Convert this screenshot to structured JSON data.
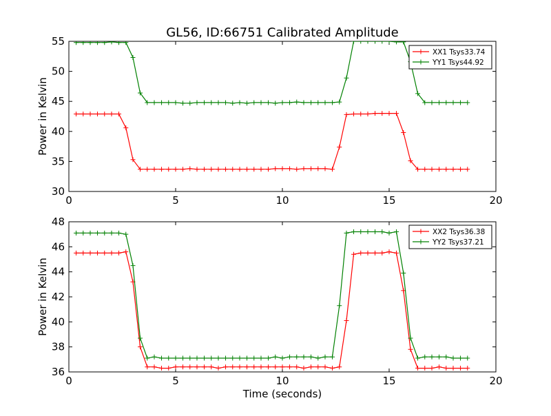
{
  "chart_data": [
    {
      "type": "line",
      "title": "GL56, ID:66751 Calibrated Amplitude",
      "xlabel": "",
      "ylabel": "Power in Kelvin",
      "xlim": [
        0,
        20
      ],
      "ylim": [
        30,
        55
      ],
      "xticks": [
        0,
        5,
        10,
        15,
        20
      ],
      "yticks": [
        30,
        35,
        40,
        45,
        50,
        55
      ],
      "grid": false,
      "legend": "top-right",
      "x": [
        0.34,
        0.67,
        1.0,
        1.34,
        1.67,
        2.0,
        2.34,
        2.67,
        3.0,
        3.34,
        3.67,
        4.0,
        4.34,
        4.67,
        5.0,
        5.34,
        5.67,
        6.0,
        6.34,
        6.67,
        7.0,
        7.34,
        7.67,
        8.0,
        8.34,
        8.67,
        9.0,
        9.34,
        9.67,
        10.0,
        10.34,
        10.67,
        11.0,
        11.34,
        11.67,
        12.0,
        12.34,
        12.67,
        13.0,
        13.34,
        13.67,
        14.0,
        14.34,
        14.67,
        15.0,
        15.34,
        15.67,
        16.0,
        16.34,
        16.67,
        17.0,
        17.34,
        17.67,
        18.0,
        18.34,
        18.67
      ],
      "series": [
        {
          "name": "XX1 Tsys33.74",
          "color": "#ff0000",
          "values": [
            42.9,
            42.9,
            42.9,
            42.9,
            42.9,
            42.9,
            42.9,
            40.6,
            35.3,
            33.7,
            33.7,
            33.7,
            33.7,
            33.7,
            33.7,
            33.7,
            33.8,
            33.7,
            33.7,
            33.7,
            33.7,
            33.7,
            33.7,
            33.7,
            33.7,
            33.7,
            33.7,
            33.7,
            33.8,
            33.8,
            33.8,
            33.7,
            33.8,
            33.8,
            33.8,
            33.8,
            33.7,
            37.4,
            42.8,
            42.9,
            42.9,
            42.9,
            43.0,
            43.0,
            43.0,
            43.0,
            39.8,
            35.1,
            33.7,
            33.7,
            33.7,
            33.7,
            33.7,
            33.7,
            33.7,
            33.7
          ]
        },
        {
          "name": "YY1 Tsys44.92",
          "color": "#008000",
          "values": [
            54.8,
            54.8,
            54.8,
            54.8,
            54.8,
            54.9,
            54.8,
            54.8,
            52.3,
            46.4,
            44.8,
            44.8,
            44.8,
            44.8,
            44.8,
            44.7,
            44.7,
            44.8,
            44.8,
            44.8,
            44.8,
            44.8,
            44.7,
            44.8,
            44.7,
            44.8,
            44.8,
            44.8,
            44.7,
            44.8,
            44.8,
            44.9,
            44.8,
            44.8,
            44.8,
            44.8,
            44.8,
            44.9,
            48.9,
            55.0,
            55.0,
            55.0,
            55.0,
            55.0,
            55.0,
            54.9,
            54.9,
            51.6,
            46.3,
            44.8,
            44.8,
            44.8,
            44.8,
            44.8,
            44.8,
            44.8
          ]
        }
      ]
    },
    {
      "type": "line",
      "title": "",
      "xlabel": "Time (seconds)",
      "ylabel": "Power in Kelvin",
      "xlim": [
        0,
        20
      ],
      "ylim": [
        36,
        48
      ],
      "xticks": [
        0,
        5,
        10,
        15,
        20
      ],
      "yticks": [
        36,
        38,
        40,
        42,
        44,
        46,
        48
      ],
      "grid": false,
      "legend": "top-right",
      "x": [
        0.34,
        0.67,
        1.0,
        1.34,
        1.67,
        2.0,
        2.34,
        2.67,
        3.0,
        3.34,
        3.67,
        4.0,
        4.34,
        4.67,
        5.0,
        5.34,
        5.67,
        6.0,
        6.34,
        6.67,
        7.0,
        7.34,
        7.67,
        8.0,
        8.34,
        8.67,
        9.0,
        9.34,
        9.67,
        10.0,
        10.34,
        10.67,
        11.0,
        11.34,
        11.67,
        12.0,
        12.34,
        12.67,
        13.0,
        13.34,
        13.67,
        14.0,
        14.34,
        14.67,
        15.0,
        15.34,
        15.67,
        16.0,
        16.34,
        16.67,
        17.0,
        17.34,
        17.67,
        18.0,
        18.34,
        18.67
      ],
      "series": [
        {
          "name": "XX2 Tsys36.38",
          "color": "#ff0000",
          "values": [
            45.5,
            45.5,
            45.5,
            45.5,
            45.5,
            45.5,
            45.5,
            45.6,
            43.2,
            38.0,
            36.4,
            36.4,
            36.3,
            36.3,
            36.4,
            36.4,
            36.4,
            36.4,
            36.4,
            36.4,
            36.3,
            36.4,
            36.4,
            36.4,
            36.4,
            36.4,
            36.4,
            36.4,
            36.4,
            36.4,
            36.4,
            36.4,
            36.3,
            36.4,
            36.4,
            36.4,
            36.3,
            36.4,
            40.1,
            45.4,
            45.5,
            45.5,
            45.5,
            45.5,
            45.6,
            45.5,
            42.5,
            37.8,
            36.3,
            36.3,
            36.3,
            36.4,
            36.3,
            36.3,
            36.3,
            36.3
          ]
        },
        {
          "name": "YY2 Tsys37.21",
          "color": "#008000",
          "values": [
            47.1,
            47.1,
            47.1,
            47.1,
            47.1,
            47.1,
            47.1,
            47.0,
            44.5,
            38.7,
            37.1,
            37.2,
            37.1,
            37.1,
            37.1,
            37.1,
            37.1,
            37.1,
            37.1,
            37.1,
            37.1,
            37.1,
            37.1,
            37.1,
            37.1,
            37.1,
            37.1,
            37.1,
            37.2,
            37.1,
            37.2,
            37.2,
            37.2,
            37.2,
            37.1,
            37.2,
            37.2,
            41.3,
            47.1,
            47.2,
            47.2,
            47.2,
            47.2,
            47.2,
            47.1,
            47.2,
            43.9,
            38.7,
            37.1,
            37.2,
            37.2,
            37.2,
            37.2,
            37.1,
            37.1,
            37.1
          ]
        }
      ]
    }
  ]
}
